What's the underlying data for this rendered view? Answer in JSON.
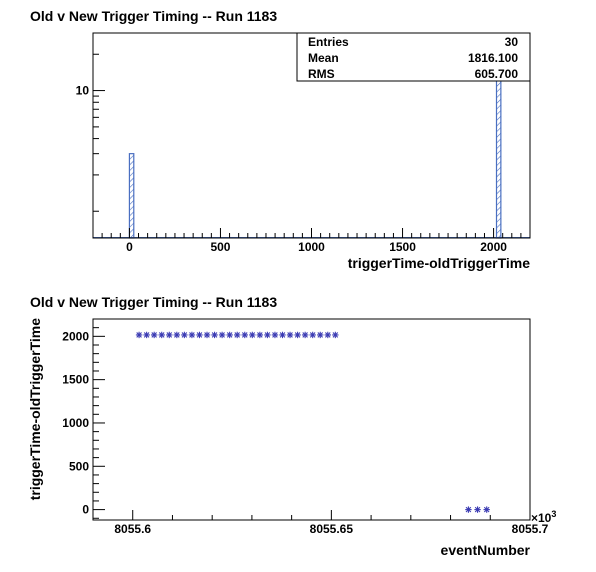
{
  "chart_data": [
    {
      "type": "bar",
      "title": "Old v New Trigger Timing -- Run 1183",
      "xlabel": "triggerTime-oldTriggerTime",
      "ylabel": "",
      "xlim": [
        -200,
        2200
      ],
      "ylim": [
        0.6,
        30
      ],
      "y_scale": "log",
      "x_tick_labels": [
        "0",
        "500",
        "1000",
        "1500",
        "2000"
      ],
      "y_tick_labels": [
        "10"
      ],
      "bins": [
        {
          "x_low": 0,
          "x_high": 24,
          "count": 3
        },
        {
          "x_low": 2016,
          "x_high": 2040,
          "count": 27
        }
      ],
      "stats_box": {
        "position": "top-right",
        "rows": [
          {
            "label": "Entries",
            "value": "30"
          },
          {
            "label": "Mean",
            "value": "1816.100"
          },
          {
            "label": "RMS",
            "value": "605.700"
          }
        ]
      },
      "colors": {
        "bar_outline": "#4a6fc1",
        "bar_hatch": "#4a6fc1"
      }
    },
    {
      "type": "scatter",
      "title": "Old v New Trigger Timing -- Run 1183",
      "xlabel": "eventNumber",
      "ylabel": "triggerTime-oldTriggerTime",
      "x_multiplier_label": "×10",
      "x_multiplier_exponent": "3",
      "xlim": [
        8055.59,
        8055.7
      ],
      "ylim": [
        -120,
        2200
      ],
      "x_tick_labels": [
        "8055.6",
        "8055.65",
        "8055.7"
      ],
      "y_tick_labels": [
        "0",
        "500",
        "1000",
        "1500",
        "2000"
      ],
      "marker": "star",
      "points": [
        {
          "x": 8055.6016,
          "y": 2016
        },
        {
          "x": 8055.6035,
          "y": 2016
        },
        {
          "x": 8055.6054,
          "y": 2016
        },
        {
          "x": 8055.6073,
          "y": 2016
        },
        {
          "x": 8055.6092,
          "y": 2016
        },
        {
          "x": 8055.6111,
          "y": 2016
        },
        {
          "x": 8055.613,
          "y": 2016
        },
        {
          "x": 8055.6149,
          "y": 2016
        },
        {
          "x": 8055.6168,
          "y": 2016
        },
        {
          "x": 8055.6187,
          "y": 2016
        },
        {
          "x": 8055.6206,
          "y": 2016
        },
        {
          "x": 8055.6225,
          "y": 2016
        },
        {
          "x": 8055.6244,
          "y": 2016
        },
        {
          "x": 8055.6263,
          "y": 2016
        },
        {
          "x": 8055.6282,
          "y": 2016
        },
        {
          "x": 8055.6301,
          "y": 2016
        },
        {
          "x": 8055.632,
          "y": 2016
        },
        {
          "x": 8055.6339,
          "y": 2016
        },
        {
          "x": 8055.6358,
          "y": 2016
        },
        {
          "x": 8055.6377,
          "y": 2016
        },
        {
          "x": 8055.6396,
          "y": 2016
        },
        {
          "x": 8055.6415,
          "y": 2016
        },
        {
          "x": 8055.6434,
          "y": 2016
        },
        {
          "x": 8055.6453,
          "y": 2016
        },
        {
          "x": 8055.6472,
          "y": 2016
        },
        {
          "x": 8055.6491,
          "y": 2016
        },
        {
          "x": 8055.651,
          "y": 2016
        },
        {
          "x": 8055.6845,
          "y": 0
        },
        {
          "x": 8055.6868,
          "y": 0
        },
        {
          "x": 8055.6891,
          "y": 0
        }
      ],
      "colors": {
        "marker": "#3b3bb3"
      }
    }
  ]
}
